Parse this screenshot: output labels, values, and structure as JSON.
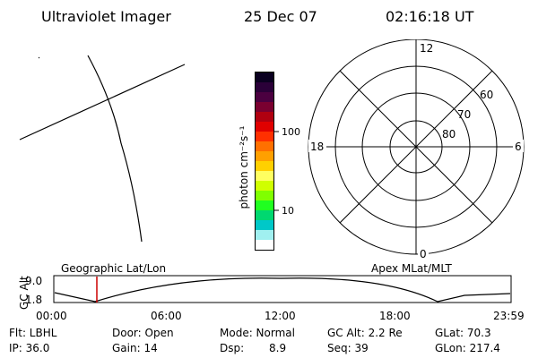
{
  "header": {
    "instrument": "Ultraviolet Imager",
    "date": "25 Dec 07",
    "time": "02:16:18 UT"
  },
  "colorbar": {
    "unit_label": "photon cm⁻²s⁻¹",
    "tick_100": "100",
    "tick_10": "10",
    "colors": [
      "#0a0020",
      "#2a0038",
      "#4b0040",
      "#7a0030",
      "#b00010",
      "#e00000",
      "#ff3000",
      "#ff7000",
      "#ffa000",
      "#ffd000",
      "#ffff60",
      "#d0ff00",
      "#80ff00",
      "#20ff20",
      "#00d870",
      "#00c8c8",
      "#a0f0f0",
      "#ffffff"
    ]
  },
  "polar": {
    "label_top": "12",
    "label_bottom": "0",
    "label_left": "18",
    "label_right": "6",
    "lat_60": "60",
    "lat_70": "70",
    "lat_80": "80"
  },
  "timeline": {
    "y_label": "GC Alt",
    "y_max": "9.0",
    "y_min": "1.8",
    "left_label": "Geographic Lat/Lon",
    "right_label": "Apex MLat/MLT",
    "ticks": [
      "00:00",
      "06:00",
      "12:00",
      "18:00",
      "23:59"
    ],
    "marker_color": "#cc0000"
  },
  "info": {
    "flt": "Flt: LBHL",
    "ip": "IP: 36.0",
    "door": "Door: Open",
    "gain": "Gain: 14",
    "mode": "Mode: Normal",
    "dsp_label": "Dsp:",
    "dsp_value": "8.9",
    "gc_alt": "GC Alt: 2.2 Re",
    "seq": "Seq: 39",
    "glat": "GLat:  70.3",
    "glon": "GLon: 217.4"
  }
}
